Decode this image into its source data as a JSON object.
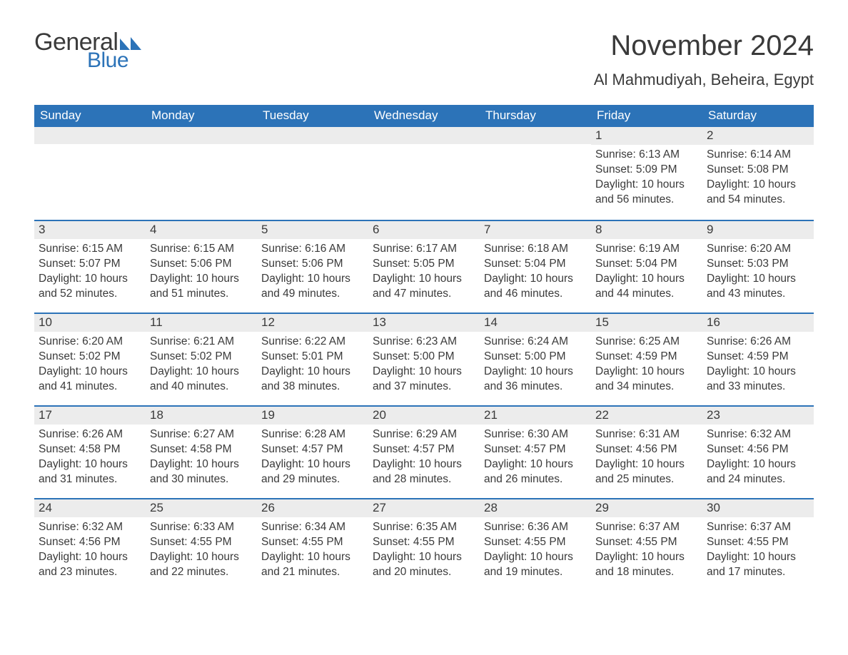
{
  "logo": {
    "word1": "General",
    "word2": "Blue",
    "gray": "#3a3a3a",
    "blue": "#2c73b8"
  },
  "title": "November 2024",
  "location": "Al Mahmudiyah, Beheira, Egypt",
  "colors": {
    "header_bg": "#2c73b8",
    "header_text": "#ffffff",
    "daynum_bg": "#ececec",
    "row_border": "#2c73b8",
    "body_text": "#3a3a3a",
    "page_bg": "#ffffff"
  },
  "days_of_week": [
    "Sunday",
    "Monday",
    "Tuesday",
    "Wednesday",
    "Thursday",
    "Friday",
    "Saturday"
  ],
  "weeks": [
    [
      null,
      null,
      null,
      null,
      null,
      {
        "n": "1",
        "sr": "Sunrise: 6:13 AM",
        "ss": "Sunset: 5:09 PM",
        "d1": "Daylight: 10 hours",
        "d2": "and 56 minutes."
      },
      {
        "n": "2",
        "sr": "Sunrise: 6:14 AM",
        "ss": "Sunset: 5:08 PM",
        "d1": "Daylight: 10 hours",
        "d2": "and 54 minutes."
      }
    ],
    [
      {
        "n": "3",
        "sr": "Sunrise: 6:15 AM",
        "ss": "Sunset: 5:07 PM",
        "d1": "Daylight: 10 hours",
        "d2": "and 52 minutes."
      },
      {
        "n": "4",
        "sr": "Sunrise: 6:15 AM",
        "ss": "Sunset: 5:06 PM",
        "d1": "Daylight: 10 hours",
        "d2": "and 51 minutes."
      },
      {
        "n": "5",
        "sr": "Sunrise: 6:16 AM",
        "ss": "Sunset: 5:06 PM",
        "d1": "Daylight: 10 hours",
        "d2": "and 49 minutes."
      },
      {
        "n": "6",
        "sr": "Sunrise: 6:17 AM",
        "ss": "Sunset: 5:05 PM",
        "d1": "Daylight: 10 hours",
        "d2": "and 47 minutes."
      },
      {
        "n": "7",
        "sr": "Sunrise: 6:18 AM",
        "ss": "Sunset: 5:04 PM",
        "d1": "Daylight: 10 hours",
        "d2": "and 46 minutes."
      },
      {
        "n": "8",
        "sr": "Sunrise: 6:19 AM",
        "ss": "Sunset: 5:04 PM",
        "d1": "Daylight: 10 hours",
        "d2": "and 44 minutes."
      },
      {
        "n": "9",
        "sr": "Sunrise: 6:20 AM",
        "ss": "Sunset: 5:03 PM",
        "d1": "Daylight: 10 hours",
        "d2": "and 43 minutes."
      }
    ],
    [
      {
        "n": "10",
        "sr": "Sunrise: 6:20 AM",
        "ss": "Sunset: 5:02 PM",
        "d1": "Daylight: 10 hours",
        "d2": "and 41 minutes."
      },
      {
        "n": "11",
        "sr": "Sunrise: 6:21 AM",
        "ss": "Sunset: 5:02 PM",
        "d1": "Daylight: 10 hours",
        "d2": "and 40 minutes."
      },
      {
        "n": "12",
        "sr": "Sunrise: 6:22 AM",
        "ss": "Sunset: 5:01 PM",
        "d1": "Daylight: 10 hours",
        "d2": "and 38 minutes."
      },
      {
        "n": "13",
        "sr": "Sunrise: 6:23 AM",
        "ss": "Sunset: 5:00 PM",
        "d1": "Daylight: 10 hours",
        "d2": "and 37 minutes."
      },
      {
        "n": "14",
        "sr": "Sunrise: 6:24 AM",
        "ss": "Sunset: 5:00 PM",
        "d1": "Daylight: 10 hours",
        "d2": "and 36 minutes."
      },
      {
        "n": "15",
        "sr": "Sunrise: 6:25 AM",
        "ss": "Sunset: 4:59 PM",
        "d1": "Daylight: 10 hours",
        "d2": "and 34 minutes."
      },
      {
        "n": "16",
        "sr": "Sunrise: 6:26 AM",
        "ss": "Sunset: 4:59 PM",
        "d1": "Daylight: 10 hours",
        "d2": "and 33 minutes."
      }
    ],
    [
      {
        "n": "17",
        "sr": "Sunrise: 6:26 AM",
        "ss": "Sunset: 4:58 PM",
        "d1": "Daylight: 10 hours",
        "d2": "and 31 minutes."
      },
      {
        "n": "18",
        "sr": "Sunrise: 6:27 AM",
        "ss": "Sunset: 4:58 PM",
        "d1": "Daylight: 10 hours",
        "d2": "and 30 minutes."
      },
      {
        "n": "19",
        "sr": "Sunrise: 6:28 AM",
        "ss": "Sunset: 4:57 PM",
        "d1": "Daylight: 10 hours",
        "d2": "and 29 minutes."
      },
      {
        "n": "20",
        "sr": "Sunrise: 6:29 AM",
        "ss": "Sunset: 4:57 PM",
        "d1": "Daylight: 10 hours",
        "d2": "and 28 minutes."
      },
      {
        "n": "21",
        "sr": "Sunrise: 6:30 AM",
        "ss": "Sunset: 4:57 PM",
        "d1": "Daylight: 10 hours",
        "d2": "and 26 minutes."
      },
      {
        "n": "22",
        "sr": "Sunrise: 6:31 AM",
        "ss": "Sunset: 4:56 PM",
        "d1": "Daylight: 10 hours",
        "d2": "and 25 minutes."
      },
      {
        "n": "23",
        "sr": "Sunrise: 6:32 AM",
        "ss": "Sunset: 4:56 PM",
        "d1": "Daylight: 10 hours",
        "d2": "and 24 minutes."
      }
    ],
    [
      {
        "n": "24",
        "sr": "Sunrise: 6:32 AM",
        "ss": "Sunset: 4:56 PM",
        "d1": "Daylight: 10 hours",
        "d2": "and 23 minutes."
      },
      {
        "n": "25",
        "sr": "Sunrise: 6:33 AM",
        "ss": "Sunset: 4:55 PM",
        "d1": "Daylight: 10 hours",
        "d2": "and 22 minutes."
      },
      {
        "n": "26",
        "sr": "Sunrise: 6:34 AM",
        "ss": "Sunset: 4:55 PM",
        "d1": "Daylight: 10 hours",
        "d2": "and 21 minutes."
      },
      {
        "n": "27",
        "sr": "Sunrise: 6:35 AM",
        "ss": "Sunset: 4:55 PM",
        "d1": "Daylight: 10 hours",
        "d2": "and 20 minutes."
      },
      {
        "n": "28",
        "sr": "Sunrise: 6:36 AM",
        "ss": "Sunset: 4:55 PM",
        "d1": "Daylight: 10 hours",
        "d2": "and 19 minutes."
      },
      {
        "n": "29",
        "sr": "Sunrise: 6:37 AM",
        "ss": "Sunset: 4:55 PM",
        "d1": "Daylight: 10 hours",
        "d2": "and 18 minutes."
      },
      {
        "n": "30",
        "sr": "Sunrise: 6:37 AM",
        "ss": "Sunset: 4:55 PM",
        "d1": "Daylight: 10 hours",
        "d2": "and 17 minutes."
      }
    ]
  ]
}
